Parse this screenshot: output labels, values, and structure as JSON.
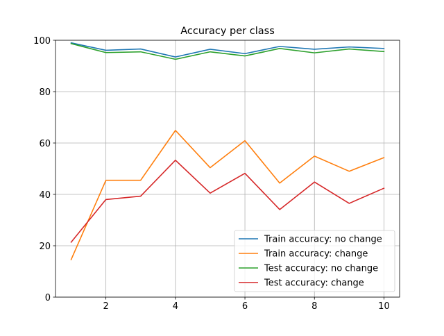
{
  "chart_data": {
    "type": "line",
    "title": "Accuracy per class",
    "xlabel": "",
    "ylabel": "",
    "xlim": [
      0.55,
      10.45
    ],
    "ylim": [
      0,
      100
    ],
    "x_ticks": [
      2,
      4,
      6,
      8,
      10
    ],
    "y_ticks": [
      0,
      20,
      40,
      60,
      80,
      100
    ],
    "grid": true,
    "legend_position": "lower-right",
    "x": [
      1,
      2,
      3,
      4,
      5,
      6,
      7,
      8,
      9,
      10
    ],
    "series": [
      {
        "name": "Train accuracy: no change",
        "color": "#1f77b4",
        "values": [
          99.0,
          96.1,
          96.6,
          93.5,
          96.5,
          94.8,
          97.6,
          96.5,
          97.4,
          96.8
        ]
      },
      {
        "name": "Train accuracy: change",
        "color": "#ff7f0e",
        "values": [
          14.6,
          45.5,
          45.5,
          64.9,
          50.4,
          60.9,
          44.4,
          54.9,
          49.0,
          54.3
        ]
      },
      {
        "name": "Test accuracy: no change",
        "color": "#2ca02c",
        "values": [
          98.7,
          95.2,
          95.5,
          92.6,
          95.5,
          93.9,
          96.8,
          95.1,
          96.6,
          95.6
        ]
      },
      {
        "name": "Test accuracy: change",
        "color": "#d62728",
        "values": [
          21.4,
          38.0,
          39.3,
          53.3,
          40.5,
          48.2,
          34.1,
          44.8,
          36.5,
          42.4
        ]
      }
    ]
  }
}
